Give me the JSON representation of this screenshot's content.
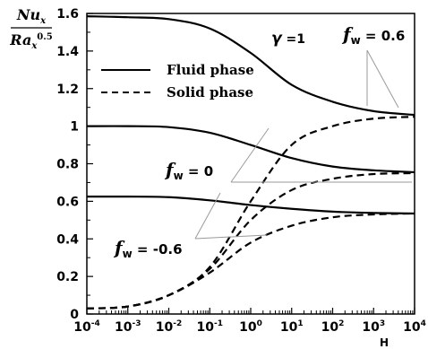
{
  "chart_data": {
    "type": "line",
    "x_scale": "log",
    "xlim": [
      0.0001,
      10000
    ],
    "ylim": [
      0,
      1.6
    ],
    "grid": false,
    "xlabel": "H",
    "x_ticks": [
      {
        "base": "10",
        "exp": "-4"
      },
      {
        "base": "10",
        "exp": "-3"
      },
      {
        "base": "10",
        "exp": "-2"
      },
      {
        "base": "10",
        "exp": "-1"
      },
      {
        "base": "10",
        "exp": "0"
      },
      {
        "base": "10",
        "exp": "1"
      },
      {
        "base": "10",
        "exp": "2"
      },
      {
        "base": "10",
        "exp": "3"
      },
      {
        "base": "10",
        "exp": "4"
      }
    ],
    "y_ticks": [
      "0",
      "0.2",
      "0.4",
      "0.6",
      "0.8",
      "1",
      "1.2",
      "1.4",
      "1.6"
    ],
    "ylabel": {
      "num_base": "Nu",
      "num_sub": "x",
      "den_base": "Ra",
      "den_sub": "x",
      "den_sup": "0.5"
    },
    "legend": {
      "placement": "top-left",
      "entries": [
        {
          "label": "Fluid phase",
          "style": "solid"
        },
        {
          "label": "Solid phase",
          "style": "dashed"
        }
      ]
    },
    "annotations": {
      "gamma": {
        "symbol": "γ",
        "text": " =1"
      },
      "fw_pos": {
        "base": "f",
        "sub": "w",
        "text": " = 0.6"
      },
      "fw_zero": {
        "base": "f",
        "sub": "w",
        "text": " = 0"
      },
      "fw_neg": {
        "base": "f",
        "sub": "w",
        "text": " = -0.6"
      }
    },
    "series": [
      {
        "group": "fw = 0.6",
        "style": "solid",
        "x": [
          0.0001,
          0.001,
          0.01,
          0.1,
          1,
          10,
          100,
          1000,
          10000
        ],
        "y": [
          1.585,
          1.58,
          1.57,
          1.52,
          1.39,
          1.22,
          1.13,
          1.08,
          1.06
        ]
      },
      {
        "group": "fw = 0",
        "style": "solid",
        "x": [
          0.0001,
          0.001,
          0.01,
          0.1,
          1,
          10,
          100,
          1000,
          10000
        ],
        "y": [
          1.0,
          1.0,
          0.995,
          0.965,
          0.9,
          0.83,
          0.785,
          0.765,
          0.755
        ]
      },
      {
        "group": "fw = -0.6",
        "style": "solid",
        "x": [
          0.0001,
          0.001,
          0.01,
          0.1,
          1,
          10,
          100,
          1000,
          10000
        ],
        "y": [
          0.625,
          0.625,
          0.622,
          0.605,
          0.58,
          0.56,
          0.545,
          0.538,
          0.535
        ]
      },
      {
        "group": "fw = 0.6",
        "style": "dashed",
        "x": [
          0.0001,
          0.001,
          0.01,
          0.1,
          1,
          10,
          100,
          1000,
          10000
        ],
        "y": [
          0.03,
          0.04,
          0.1,
          0.25,
          0.6,
          0.9,
          1.0,
          1.04,
          1.05
        ]
      },
      {
        "group": "fw = 0",
        "style": "dashed",
        "x": [
          0.0001,
          0.001,
          0.01,
          0.1,
          1,
          10,
          100,
          1000,
          10000
        ],
        "y": [
          0.03,
          0.04,
          0.1,
          0.24,
          0.5,
          0.66,
          0.72,
          0.745,
          0.75
        ]
      },
      {
        "group": "fw = -0.6",
        "style": "dashed",
        "x": [
          0.0001,
          0.001,
          0.01,
          0.1,
          1,
          10,
          100,
          1000,
          10000
        ],
        "y": [
          0.03,
          0.04,
          0.1,
          0.22,
          0.38,
          0.47,
          0.515,
          0.53,
          0.535
        ]
      }
    ]
  }
}
